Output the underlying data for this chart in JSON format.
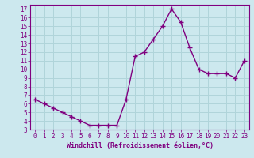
{
  "x": [
    0,
    1,
    2,
    3,
    4,
    5,
    6,
    7,
    8,
    9,
    10,
    11,
    12,
    13,
    14,
    15,
    16,
    17,
    18,
    19,
    20,
    21,
    22,
    23
  ],
  "y": [
    6.5,
    6.0,
    5.5,
    5.0,
    4.5,
    4.0,
    3.5,
    3.5,
    3.5,
    3.5,
    6.5,
    11.5,
    12.0,
    13.5,
    15.0,
    17.0,
    15.5,
    12.5,
    10.0,
    9.5,
    9.5,
    9.5,
    9.0,
    11.0
  ],
  "line_color": "#800080",
  "marker": "+",
  "marker_size": 4,
  "linewidth": 1.0,
  "xlabel": "Windchill (Refroidissement éolien,°C)",
  "xlim": [
    -0.5,
    23.5
  ],
  "ylim": [
    3,
    17.5
  ],
  "yticks": [
    3,
    4,
    5,
    6,
    7,
    8,
    9,
    10,
    11,
    12,
    13,
    14,
    15,
    16,
    17
  ],
  "xticks": [
    0,
    1,
    2,
    3,
    4,
    5,
    6,
    7,
    8,
    9,
    10,
    11,
    12,
    13,
    14,
    15,
    16,
    17,
    18,
    19,
    20,
    21,
    22,
    23
  ],
  "bg_color": "#cce8ee",
  "grid_color": "#b0d4da",
  "tick_color": "#800080",
  "label_color": "#800080",
  "spine_color": "#800080",
  "font_size_ticks": 5.5,
  "font_size_label": 6.0
}
